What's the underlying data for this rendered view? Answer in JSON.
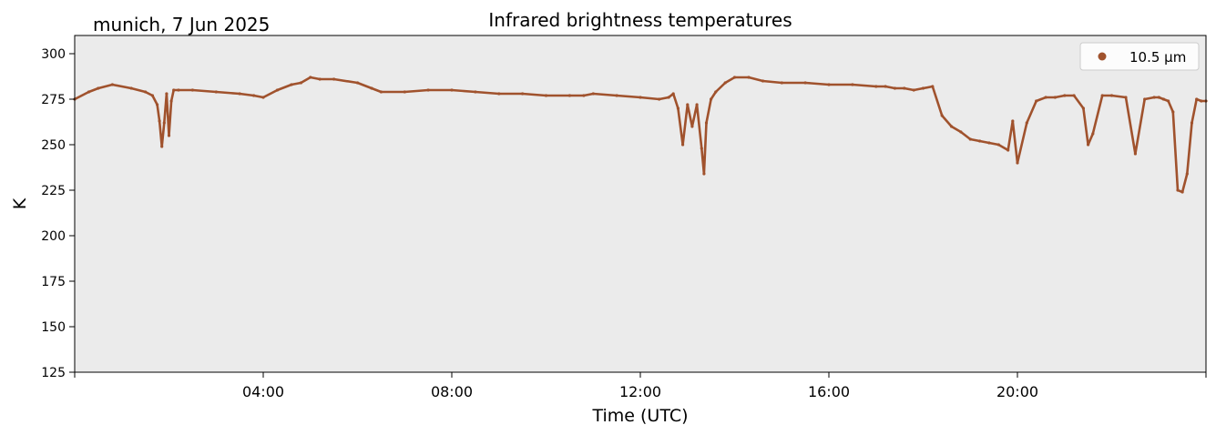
{
  "header": {
    "location_date": "munich, 7 Jun 2025",
    "title": "Infrared brightness temperatures"
  },
  "chart_data": {
    "type": "scatter",
    "title": "Infrared brightness temperatures",
    "xlabel": "Time (UTC)",
    "ylabel": "K",
    "x_unit": "hours UTC",
    "xlim": [
      0,
      24
    ],
    "ylim": [
      125,
      310
    ],
    "x_ticks": [
      0,
      4,
      8,
      12,
      16,
      20,
      24
    ],
    "x_tick_labels": [
      "",
      "04:00",
      "08:00",
      "12:00",
      "16:00",
      "20:00",
      ""
    ],
    "y_ticks": [
      125,
      150,
      175,
      200,
      225,
      250,
      275,
      300
    ],
    "y_tick_labels": [
      "125",
      "150",
      "175",
      "200",
      "225",
      "250",
      "275",
      "300"
    ],
    "grid": false,
    "legend_position": "top-right",
    "colors": {
      "series": "#a0522d",
      "plot_background": "#ebebeb"
    },
    "series": [
      {
        "name": "10.5 µm",
        "x": [
          0.0,
          0.3,
          0.5,
          0.8,
          1.2,
          1.5,
          1.65,
          1.75,
          1.8,
          1.85,
          1.9,
          1.95,
          2.0,
          2.05,
          2.1,
          2.2,
          2.5,
          3.0,
          3.5,
          3.8,
          4.0,
          4.3,
          4.6,
          4.8,
          5.0,
          5.2,
          5.5,
          6.0,
          6.3,
          6.5,
          7.0,
          7.5,
          8.0,
          8.5,
          9.0,
          9.5,
          10.0,
          10.5,
          10.8,
          11.0,
          11.5,
          12.0,
          12.4,
          12.6,
          12.7,
          12.8,
          12.9,
          13.0,
          13.1,
          13.2,
          13.3,
          13.35,
          13.4,
          13.5,
          13.6,
          13.8,
          14.0,
          14.3,
          14.6,
          15.0,
          15.5,
          16.0,
          16.5,
          17.0,
          17.2,
          17.4,
          17.6,
          17.8,
          18.0,
          18.2,
          18.4,
          18.6,
          18.8,
          19.0,
          19.2,
          19.4,
          19.6,
          19.8,
          19.9,
          20.0,
          20.2,
          20.4,
          20.6,
          20.8,
          21.0,
          21.2,
          21.4,
          21.5,
          21.6,
          21.8,
          22.0,
          22.3,
          22.5,
          22.7,
          22.9,
          23.0,
          23.1,
          23.2,
          23.3,
          23.4,
          23.5,
          23.6,
          23.7,
          23.8,
          23.9,
          24.0
        ],
        "y": [
          275,
          279,
          281,
          283,
          281,
          279,
          277,
          272,
          263,
          249,
          262,
          278,
          255,
          274,
          280,
          280,
          280,
          279,
          278,
          277,
          276,
          280,
          283,
          284,
          287,
          286,
          286,
          284,
          281,
          279,
          279,
          280,
          280,
          279,
          278,
          278,
          277,
          277,
          277,
          278,
          277,
          276,
          275,
          276,
          278,
          270,
          250,
          272,
          260,
          272,
          248,
          234,
          262,
          275,
          279,
          284,
          287,
          287,
          285,
          284,
          284,
          283,
          283,
          282,
          282,
          281,
          281,
          280,
          281,
          282,
          266,
          260,
          257,
          253,
          252,
          251,
          250,
          247,
          263,
          240,
          262,
          274,
          276,
          276,
          277,
          277,
          270,
          250,
          256,
          277,
          277,
          276,
          245,
          275,
          276,
          276,
          275,
          274,
          268,
          225,
          224,
          234,
          262,
          275,
          274,
          274
        ]
      }
    ]
  }
}
